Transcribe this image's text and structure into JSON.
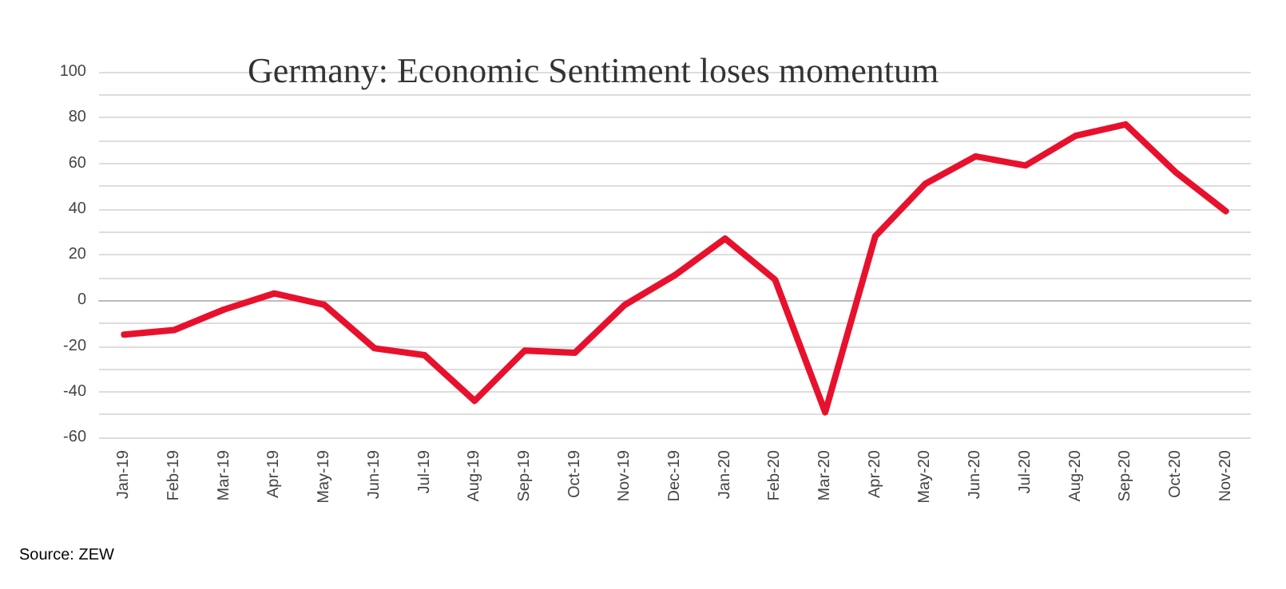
{
  "chart_data": {
    "type": "line",
    "title": "Germany: Economic Sentiment loses momentum",
    "categories": [
      "Jan-19",
      "Feb-19",
      "Mar-19",
      "Apr-19",
      "May-19",
      "Jun-19",
      "Jul-19",
      "Aug-19",
      "Sep-19",
      "Oct-19",
      "Nov-19",
      "Dec-19",
      "Jan-20",
      "Feb-20",
      "Mar-20",
      "Apr-20",
      "May-20",
      "Jun-20",
      "Jul-20",
      "Aug-20",
      "Sep-20",
      "Oct-20",
      "Nov-20"
    ],
    "values": [
      -15,
      -13,
      -4,
      3,
      -2,
      -21,
      -24,
      -44,
      -22,
      -23,
      -2,
      11,
      27,
      9,
      -49,
      28,
      51,
      63,
      59,
      72,
      77,
      56,
      39
    ],
    "color": "#e8112d",
    "ylim": [
      -60,
      100
    ],
    "yticks": [
      -60,
      {
        "value": -50,
        "label": null
      },
      -40,
      {
        "value": -30,
        "label": null
      },
      -20,
      {
        "value": -10,
        "label": null
      },
      0,
      {
        "value": 10,
        "label": null
      },
      20,
      {
        "value": 30,
        "label": null
      },
      40,
      {
        "value": 50,
        "label": null
      },
      60,
      {
        "value": 70,
        "label": null
      },
      80,
      {
        "value": 90,
        "label": null
      },
      100
    ],
    "grid": "y",
    "marker": "none",
    "line_style": "solid",
    "annotations": [
      "Source: ZEW"
    ]
  }
}
